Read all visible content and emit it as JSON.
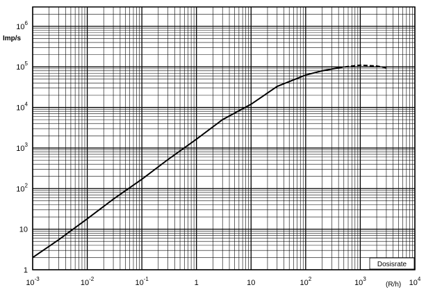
{
  "chart_data": {
    "type": "line",
    "y_label": "Imp/s",
    "x_unit": "(R/h)",
    "x_label": "Dosisrate",
    "xscale": "log",
    "yscale": "log",
    "grid": true,
    "xlim": [
      0.001,
      10000
    ],
    "ylim": [
      1,
      3000000
    ],
    "xticks": [
      {
        "value": 0.001,
        "label": "10",
        "exponent": "-3"
      },
      {
        "value": 0.01,
        "label": "10",
        "exponent": "-2"
      },
      {
        "value": 0.1,
        "label": "10",
        "exponent": "-1"
      },
      1,
      10,
      {
        "value": 100,
        "label": "10",
        "exponent": "2"
      },
      {
        "value": 1000,
        "label": "10",
        "exponent": "3"
      },
      {
        "value": 10000,
        "label": "10",
        "exponent": "4"
      }
    ],
    "yticks": [
      1,
      10,
      {
        "value": 100,
        "label": "10",
        "exponent": "2"
      },
      {
        "value": 1000,
        "label": "10",
        "exponent": "3"
      },
      {
        "value": 10000,
        "label": "10",
        "exponent": "4"
      },
      {
        "value": 100000,
        "label": "10",
        "exponent": "5"
      },
      {
        "value": 1000000,
        "label": "10",
        "exponent": "6"
      }
    ],
    "xminor": [
      0.002,
      0.003,
      0.004,
      0.005,
      0.006,
      0.007,
      0.008,
      0.009,
      0.02,
      0.03,
      0.04,
      0.05,
      0.06,
      0.07,
      0.08,
      0.09,
      0.2,
      0.3,
      0.4,
      0.5,
      0.6,
      0.7,
      0.8,
      0.9,
      2,
      3,
      4,
      5,
      6,
      7,
      8,
      9,
      20,
      30,
      40,
      50,
      60,
      70,
      80,
      90,
      200,
      300,
      400,
      500,
      600,
      700,
      800,
      900,
      2000,
      3000,
      4000,
      5000,
      6000,
      7000,
      8000,
      9000
    ],
    "yminor": [
      2,
      3,
      4,
      5,
      6,
      7,
      8,
      9,
      20,
      30,
      40,
      50,
      60,
      70,
      80,
      90,
      200,
      300,
      400,
      500,
      600,
      700,
      800,
      900,
      2000,
      3000,
      4000,
      5000,
      6000,
      7000,
      8000,
      9000,
      20000,
      30000,
      40000,
      50000,
      60000,
      70000,
      80000,
      90000,
      200000,
      300000,
      400000,
      500000,
      600000,
      700000,
      800000,
      900000,
      2000000
    ],
    "series": [
      {
        "style": "solid",
        "color": "#000000",
        "x": [
          0.001,
          0.003,
          0.01,
          0.03,
          0.1,
          0.3,
          1,
          3,
          10,
          30,
          100,
          200,
          400
        ],
        "values": [
          2,
          5.5,
          18,
          55,
          170,
          520,
          1650,
          5000,
          12000,
          33000,
          63000,
          80000,
          95000
        ]
      },
      {
        "style": "dashed",
        "color": "#000000",
        "x": [
          400,
          700,
          1000,
          2000,
          3000
        ],
        "values": [
          95000,
          105000,
          110000,
          105000,
          95000
        ]
      }
    ]
  }
}
